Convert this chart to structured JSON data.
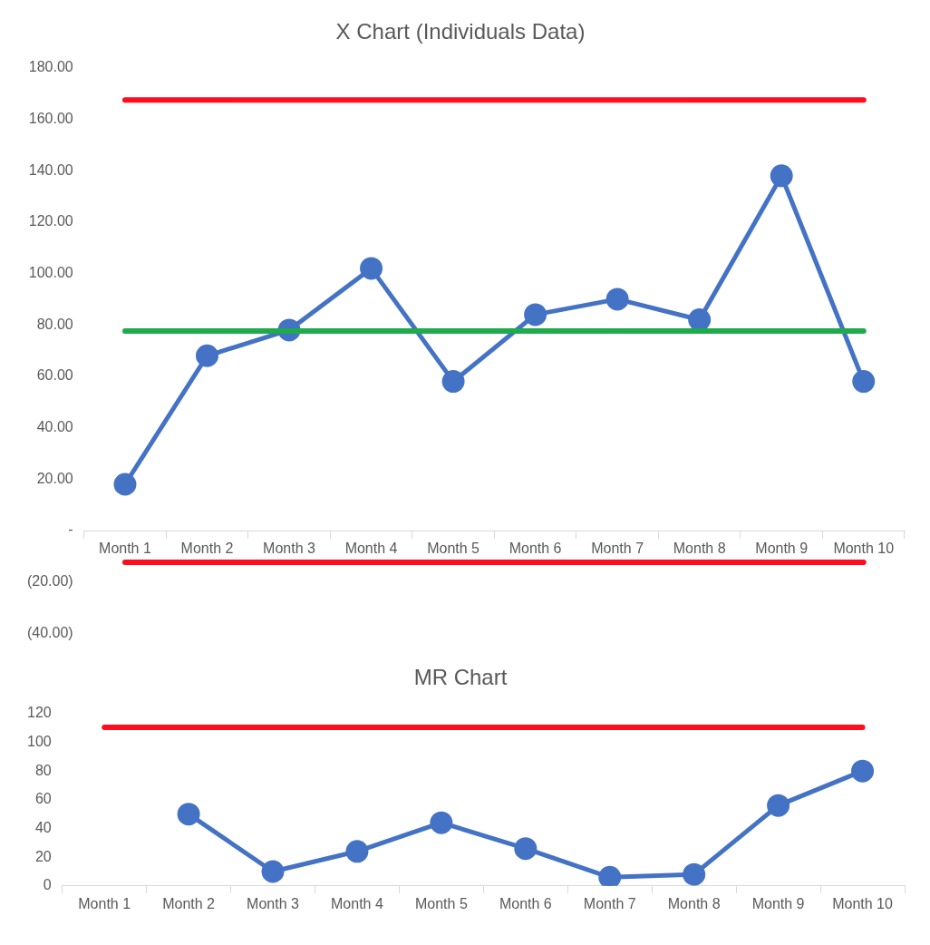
{
  "chart_data": [
    {
      "type": "line",
      "title": "X Chart (Individuals Data)",
      "categories": [
        "Month 1",
        "Month 2",
        "Month 3",
        "Month 4",
        "Month 5",
        "Month 6",
        "Month 7",
        "Month 8",
        "Month 9",
        "Month 10"
      ],
      "series": [
        {
          "color": "#4472c4",
          "values": [
            18,
            68,
            78,
            102,
            58,
            84,
            90,
            82,
            138,
            58
          ]
        }
      ],
      "ylim": [
        -40,
        180
      ],
      "yticks": [
        {
          "value": -40,
          "label": "(40.00)"
        },
        {
          "value": -20,
          "label": "(20.00)"
        },
        {
          "value": 0,
          "label": "-"
        },
        {
          "value": 20,
          "label": "20.00"
        },
        {
          "value": 40,
          "label": "40.00"
        },
        {
          "value": 60,
          "label": "60.00"
        },
        {
          "value": 80,
          "label": "80.00"
        },
        {
          "value": 100,
          "label": "100.00"
        },
        {
          "value": 120,
          "label": "120.00"
        },
        {
          "value": 140,
          "label": "140.00"
        },
        {
          "value": 160,
          "label": "160.00"
        },
        {
          "value": 180,
          "label": "180.00"
        }
      ],
      "ref_lines": [
        {
          "axis": "y",
          "value": 167.5,
          "color": "#ff0d1f"
        },
        {
          "axis": "y",
          "value": 77.6,
          "color": "#1faa4b"
        },
        {
          "axis": "y",
          "value": -12.3,
          "color": "#ff0d1f"
        }
      ],
      "marker": "circle",
      "grid": false,
      "legend": false
    },
    {
      "type": "line",
      "title": "MR Chart",
      "categories": [
        "Month 1",
        "Month 2",
        "Month 3",
        "Month 4",
        "Month 5",
        "Month 6",
        "Month 7",
        "Month 8",
        "Month 9",
        "Month 10"
      ],
      "series": [
        {
          "color": "#4472c4",
          "values": [
            null,
            50,
            10,
            24,
            44,
            26,
            6,
            8,
            56,
            80
          ]
        }
      ],
      "ylim": [
        0,
        120
      ],
      "yticks": [
        0,
        20,
        40,
        60,
        80,
        100,
        120
      ],
      "ref_lines": [
        {
          "axis": "y",
          "value": 110.4,
          "color": "#ff0d1f"
        }
      ],
      "marker": "circle",
      "grid": false,
      "legend": false
    }
  ]
}
